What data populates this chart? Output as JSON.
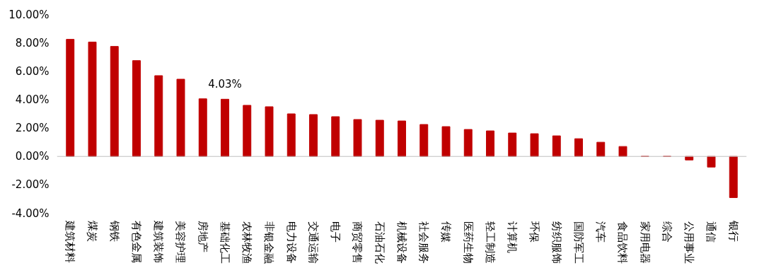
{
  "chart_data": {
    "type": "bar",
    "categories": [
      "建筑材料",
      "煤炭",
      "钢铁",
      "有色金属",
      "建筑装饰",
      "美容护理",
      "房地产",
      "基础化工",
      "农林牧渔",
      "非银金融",
      "电力设备",
      "交通运输",
      "电子",
      "商贸零售",
      "石油石化",
      "机械设备",
      "社会服务",
      "传媒",
      "医药生物",
      "轻工制造",
      "计算机",
      "环保",
      "纺织服饰",
      "国防军工",
      "汽车",
      "食品饮料",
      "家用电器",
      "综合",
      "公用事业",
      "通信",
      "银行"
    ],
    "values": [
      8.25,
      8.06,
      7.75,
      6.75,
      5.69,
      5.44,
      4.06,
      4.03,
      3.6,
      3.5,
      3.0,
      2.95,
      2.8,
      2.6,
      2.55,
      2.5,
      2.25,
      2.1,
      1.9,
      1.8,
      1.65,
      1.6,
      1.45,
      1.25,
      1.0,
      0.7,
      0.0,
      0.0,
      -0.25,
      -0.75,
      -2.9
    ],
    "value_labels": [
      null,
      null,
      null,
      null,
      null,
      null,
      null,
      "4.03%",
      null,
      null,
      null,
      null,
      null,
      null,
      null,
      null,
      null,
      null,
      null,
      null,
      null,
      null,
      null,
      null,
      null,
      null,
      null,
      null,
      null,
      null,
      null
    ],
    "color": "#c00000",
    "ylim": [
      -4,
      10
    ],
    "yticks": [
      {
        "value": -4,
        "label": "-4.00%"
      },
      {
        "value": -2,
        "label": "-2.00%"
      },
      {
        "value": 0,
        "label": "0.00%"
      },
      {
        "value": 2,
        "label": "2.00%"
      },
      {
        "value": 4,
        "label": "4.00%"
      },
      {
        "value": 6,
        "label": "6.00%"
      },
      {
        "value": 8,
        "label": "8.00%"
      },
      {
        "value": 10,
        "label": "10.00%"
      }
    ],
    "legend": false
  }
}
